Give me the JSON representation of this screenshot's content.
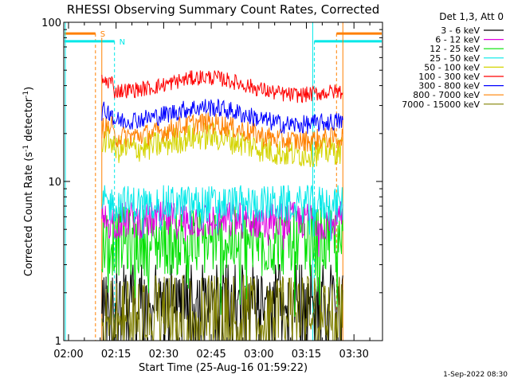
{
  "chart_data": {
    "type": "line",
    "title": "RHESSI Observing Summary Count Rates, Corrected",
    "xlabel": "Start Time (25-Aug-16 01:59:22)",
    "ylabel_main": "Corrected Count Rate (s",
    "ylabel_sup1": "-1",
    "ylabel_mid": " detector",
    "ylabel_sup2": "-1",
    "ylabel_end": ")",
    "footer": "1-Sep-2022 08:30",
    "y_scale": "log",
    "ylim": [
      1,
      100
    ],
    "xlim_minutes": [
      -0.5,
      100
    ],
    "x_tick_labels": [
      "02:00",
      "02:15",
      "02:30",
      "02:45",
      "03:00",
      "03:15",
      "03:30"
    ],
    "x_tick_minutes": [
      1,
      16,
      31,
      46,
      61,
      76,
      91
    ],
    "y_tick_labels": [
      "1",
      "10",
      "100"
    ],
    "y_tick_values": [
      1,
      10,
      100
    ],
    "legend_title": "Det 1,3, Att 0",
    "legend_position": "right",
    "data_interval_minutes": [
      11.5,
      87.5
    ],
    "series": [
      {
        "name": "3 - 6 keV",
        "color": "#000000",
        "base": 1.6,
        "noise": 0.35,
        "shape": "low"
      },
      {
        "name": "6 - 12 keV",
        "color": "#e000e0",
        "base": 5.7,
        "noise": 0.12,
        "shape": "flat"
      },
      {
        "name": "12 - 25 keV",
        "color": "#00e000",
        "base": 4.2,
        "noise": 0.22,
        "shape": "flat"
      },
      {
        "name": "25 - 50 keV",
        "color": "#00e8e8",
        "base": 7.2,
        "noise": 0.12,
        "shape": "flat"
      },
      {
        "name": "50 - 100 keV",
        "color": "#d4d400",
        "base": 15.8,
        "noise": 0.09,
        "shape": "hump"
      },
      {
        "name": "100 - 300 keV",
        "color": "#ff0000",
        "base": 37.0,
        "noise": 0.05,
        "shape": "hump"
      },
      {
        "name": "300 - 800 keV",
        "color": "#0000ff",
        "base": 24.0,
        "noise": 0.06,
        "shape": "hump"
      },
      {
        "name": "800 - 7000 keV",
        "color": "#ff8000",
        "base": 19.0,
        "noise": 0.07,
        "shape": "hump"
      },
      {
        "name": "7000 - 15000 keV",
        "color": "#808000",
        "base": 1.3,
        "noise": 0.3,
        "shape": "low"
      }
    ],
    "annotations": [
      {
        "label": "S",
        "color": "#ff8000",
        "start_minute": 9.5,
        "end_minute": 85.5,
        "level": 85
      },
      {
        "label": "N",
        "color": "#00e8e8",
        "start_minute": 15.5,
        "end_minute": 78.5,
        "level": 76
      }
    ]
  }
}
